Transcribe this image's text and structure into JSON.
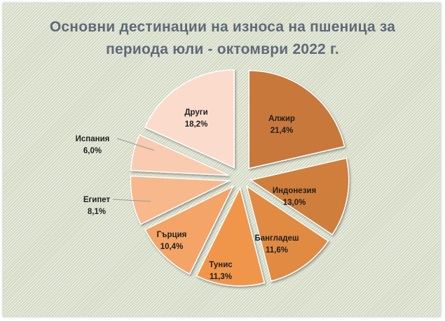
{
  "chart_data": {
    "type": "pie",
    "title": "Основни дестинации на износа на пшеница за периода юли - октомври 2022 г.",
    "title_lines": [
      "Основни дестинации на износа на пшеница за",
      "периода юли - октомври 2022 г."
    ],
    "exploded": true,
    "slices": [
      {
        "name": "Алжир",
        "value": 21.4,
        "label": "21,4%",
        "color": "#c8783a"
      },
      {
        "name": "Индонезия",
        "value": 13.0,
        "label": "13,0%",
        "color": "#d07e3a"
      },
      {
        "name": "Бангладеш",
        "value": 11.6,
        "label": "11,6%",
        "color": "#e08a42"
      },
      {
        "name": "Тунис",
        "value": 11.3,
        "label": "11,3%",
        "color": "#f0964c"
      },
      {
        "name": "Гърция",
        "value": 10.4,
        "label": "10,4%",
        "color": "#f3a466"
      },
      {
        "name": "Египет",
        "value": 8.1,
        "label": "8,1%",
        "color": "#f7b88c"
      },
      {
        "name": "Испания",
        "value": 6.0,
        "label": "6,0%",
        "color": "#f9cbb0"
      },
      {
        "name": "Други",
        "value": 18.2,
        "label": "18,2%",
        "color": "#fbdccc"
      }
    ]
  }
}
